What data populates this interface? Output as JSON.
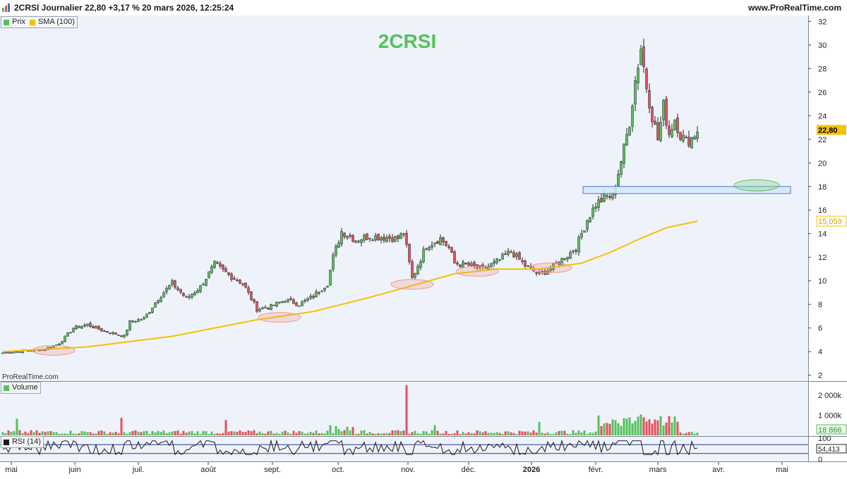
{
  "header": {
    "title": "2CRSI Journalier 22,80 +3,17 % 20 mars 2026, 12:25:24",
    "site": "www.ProRealTime.com",
    "logo_icon": "prorealtime-logo-icon"
  },
  "legends": {
    "price_label": "Prix",
    "sma_label": "SMA (100)",
    "volume_label": "Volume",
    "rsi_label": "RSI (14)"
  },
  "watermark": "ProRealTime.com",
  "colors": {
    "up": "#56c15a",
    "down": "#e2525a",
    "sma": "#f5c200",
    "title_green": "#56c15a",
    "zone_fill": "#d6e6fb",
    "zone_stroke": "#4a7ac8",
    "ellipse_red": "#f0a080",
    "ellipse_green": "#5cbf5c",
    "rsi_line": "#1a1a1a",
    "background": "#eef2fb"
  },
  "chart_data": {
    "type": "candlestick",
    "title": "2CRSI",
    "price_axis": {
      "ylim": [
        1.5,
        32.5
      ],
      "ticks": [
        2,
        4,
        6,
        8,
        10,
        12,
        14,
        16,
        18,
        20,
        22,
        24,
        26,
        28,
        30,
        32
      ]
    },
    "last_price": "22,80",
    "last_sma": "15,059",
    "time_axis": {
      "labels": [
        "mai",
        "juin",
        "juil.",
        "août",
        "sept.",
        "oct.",
        "nov.",
        "déc.",
        "2026",
        "févr.",
        "mars",
        "avr.",
        "mai"
      ],
      "bold": "2026"
    },
    "price_anchors": [
      [
        0,
        3.9
      ],
      [
        5,
        4.0
      ],
      [
        10,
        4.1
      ],
      [
        15,
        4.2
      ],
      [
        20,
        4.7
      ],
      [
        25,
        6.0
      ],
      [
        30,
        6.3
      ],
      [
        35,
        5.8
      ],
      [
        40,
        5.5
      ],
      [
        43,
        5.3
      ],
      [
        45,
        6.5
      ],
      [
        50,
        6.8
      ],
      [
        55,
        8.5
      ],
      [
        60,
        9.8
      ],
      [
        65,
        8.5
      ],
      [
        70,
        9.5
      ],
      [
        75,
        11.4
      ],
      [
        80,
        10.5
      ],
      [
        85,
        9.8
      ],
      [
        90,
        7.6
      ],
      [
        95,
        7.8
      ],
      [
        100,
        8.4
      ],
      [
        105,
        8.0
      ],
      [
        110,
        8.7
      ],
      [
        115,
        9.8
      ],
      [
        117,
        12.0
      ],
      [
        120,
        14.2
      ],
      [
        125,
        13.5
      ],
      [
        130,
        13.8
      ],
      [
        135,
        13.7
      ],
      [
        140,
        13.6
      ],
      [
        142,
        14.1
      ],
      [
        145,
        10.2
      ],
      [
        150,
        13.0
      ],
      [
        155,
        13.6
      ],
      [
        158,
        12.8
      ],
      [
        160,
        11.5
      ],
      [
        165,
        11.3
      ],
      [
        170,
        11.0
      ],
      [
        175,
        11.6
      ],
      [
        180,
        12.5
      ],
      [
        185,
        11.3
      ],
      [
        190,
        10.5
      ],
      [
        195,
        11.2
      ],
      [
        198,
        11.8
      ],
      [
        203,
        12.8
      ],
      [
        207,
        15.2
      ],
      [
        210,
        16.5
      ],
      [
        213,
        17.0
      ],
      [
        216,
        17.2
      ],
      [
        218,
        19.2
      ],
      [
        220,
        21.2
      ],
      [
        222,
        23.5
      ],
      [
        224,
        27.0
      ],
      [
        226,
        29.8
      ],
      [
        228,
        26.5
      ],
      [
        230,
        24.0
      ],
      [
        232,
        22.0
      ],
      [
        234,
        24.8
      ],
      [
        236,
        22.5
      ],
      [
        238,
        23.8
      ],
      [
        240,
        22.4
      ],
      [
        242,
        21.8
      ],
      [
        244,
        22.1
      ],
      [
        246,
        22.8
      ]
    ],
    "sma": [
      [
        0,
        4.0
      ],
      [
        30,
        4.4
      ],
      [
        60,
        5.3
      ],
      [
        90,
        6.7
      ],
      [
        110,
        7.4
      ],
      [
        130,
        8.6
      ],
      [
        145,
        9.6
      ],
      [
        160,
        10.6
      ],
      [
        175,
        11.0
      ],
      [
        190,
        11.0
      ],
      [
        205,
        11.5
      ],
      [
        215,
        12.4
      ],
      [
        225,
        13.5
      ],
      [
        235,
        14.5
      ],
      [
        246,
        15.06
      ]
    ],
    "volume": {
      "ticks": [
        "2 000k",
        "1 000k"
      ],
      "last": "18 866",
      "spike_index": 143
    },
    "rsi": {
      "last": "54,413",
      "ticks": [
        "100",
        "0"
      ],
      "levels": [
        30,
        70
      ]
    },
    "annotations": {
      "zone": {
        "y_low": 17.4,
        "y_high": 18.0,
        "from_index": 206,
        "to_index": 279
      },
      "green_ellipse": {
        "price": 18.1,
        "index": 267
      },
      "red_ellipses": [
        {
          "index": 18,
          "price": 4.1
        },
        {
          "index": 98,
          "price": 6.9
        },
        {
          "index": 145,
          "price": 9.7
        },
        {
          "index": 168,
          "price": 10.8
        },
        {
          "index": 194,
          "price": 11.1
        }
      ]
    }
  }
}
